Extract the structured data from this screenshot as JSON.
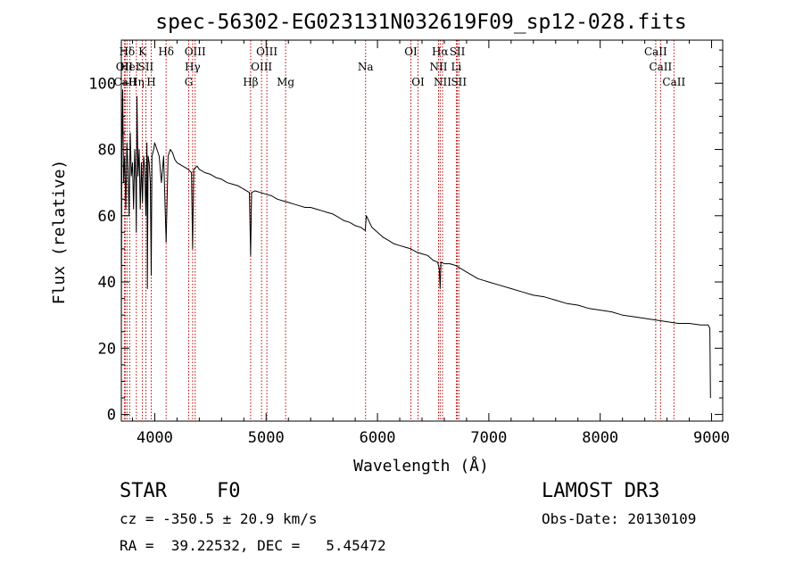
{
  "chart_data": {
    "type": "line",
    "title": "spec-56302-EG023131N032619F09_sp12-028.fits",
    "xlabel": "Wavelength (Å)",
    "ylabel": "Flux (relative)",
    "xlim": [
      3700,
      9100
    ],
    "ylim": [
      -2,
      113
    ],
    "xticks": [
      4000,
      5000,
      6000,
      7000,
      8000,
      9000
    ],
    "xtick_labels": [
      "4000",
      "5000",
      "6000",
      "7000",
      "8000",
      "9000"
    ],
    "yticks": [
      0,
      20,
      40,
      60,
      80,
      100
    ],
    "ytick_labels": [
      "0",
      "20",
      "40",
      "60",
      "80",
      "100"
    ],
    "grid": false,
    "series": [
      {
        "name": "spectrum",
        "color": "#000000",
        "x": [
          3700,
          3705,
          3712,
          3720,
          3730,
          3740,
          3750,
          3760,
          3770,
          3780,
          3790,
          3800,
          3810,
          3820,
          3830,
          3835,
          3840,
          3850,
          3860,
          3870,
          3880,
          3890,
          3900,
          3910,
          3920,
          3930,
          3934,
          3940,
          3950,
          3960,
          3968,
          3975,
          3990,
          4000,
          4020,
          4040,
          4060,
          4080,
          4102,
          4120,
          4140,
          4160,
          4180,
          4200,
          4250,
          4300,
          4330,
          4340,
          4350,
          4380,
          4400,
          4450,
          4500,
          4550,
          4600,
          4650,
          4700,
          4750,
          4800,
          4850,
          4861,
          4870,
          4900,
          4950,
          5000,
          5050,
          5100,
          5150,
          5200,
          5250,
          5300,
          5350,
          5400,
          5450,
          5500,
          5550,
          5600,
          5650,
          5700,
          5750,
          5800,
          5850,
          5890,
          5900,
          5950,
          6000,
          6050,
          6100,
          6150,
          6200,
          6250,
          6300,
          6350,
          6400,
          6450,
          6500,
          6540,
          6555,
          6563,
          6570,
          6600,
          6650,
          6700,
          6750,
          6800,
          6850,
          6900,
          6950,
          7000,
          7100,
          7200,
          7300,
          7400,
          7500,
          7600,
          7700,
          7800,
          7900,
          8000,
          8100,
          8200,
          8300,
          8400,
          8500,
          8600,
          8700,
          8800,
          8900,
          8970,
          8985,
          8990
        ],
        "y": [
          26,
          80,
          98,
          70,
          78,
          62,
          82,
          74,
          60,
          85,
          72,
          76,
          62,
          80,
          70,
          55,
          96,
          72,
          80,
          62,
          76,
          64,
          78,
          74,
          60,
          82,
          38,
          78,
          76,
          70,
          42,
          78,
          80,
          82,
          80,
          78,
          70,
          78,
          52,
          78,
          80,
          79,
          77,
          76,
          75,
          74,
          73,
          50,
          74,
          75,
          74,
          73,
          72.5,
          71.5,
          71,
          70,
          69.5,
          69,
          68,
          67,
          48,
          67,
          67.5,
          67,
          66.5,
          66,
          65,
          64.5,
          64,
          63.5,
          63,
          62.5,
          62.5,
          62,
          61.5,
          61,
          60.5,
          59.5,
          58.5,
          58,
          57,
          56.5,
          55.5,
          60,
          56.5,
          55,
          53.5,
          52.5,
          51.5,
          51,
          50.5,
          50,
          49,
          48.5,
          48,
          46.5,
          46,
          44,
          38,
          46,
          45.5,
          45.5,
          45,
          44,
          43,
          42,
          41,
          40.5,
          40,
          39,
          38,
          37,
          36,
          35.5,
          34.5,
          33.5,
          33,
          32,
          31.5,
          31,
          30,
          29.5,
          29,
          28.5,
          28,
          27.5,
          27.5,
          27,
          27,
          26,
          5
        ]
      }
    ],
    "line_markers": [
      {
        "label": "Hδ",
        "x": 3751,
        "row": 1
      },
      {
        "label": "OII",
        "x": 3727,
        "row": 2
      },
      {
        "label": "CaII",
        "x": 3735,
        "row": 3
      },
      {
        "label": "HeI",
        "x": 3775,
        "row": 2
      },
      {
        "label": "Hη",
        "x": 3835,
        "row": 3
      },
      {
        "label": "K",
        "x": 3889,
        "row": 1
      },
      {
        "label": "SII",
        "x": 3920,
        "row": 2
      },
      {
        "label": "H",
        "x": 3968,
        "row": 3
      },
      {
        "label": "Hδ",
        "x": 4102,
        "row": 1
      },
      {
        "label": "OIII",
        "x": 4363,
        "row": 1
      },
      {
        "label": "Hγ",
        "x": 4340,
        "row": 2
      },
      {
        "label": "G",
        "x": 4305,
        "row": 3
      },
      {
        "label": "Hβ",
        "x": 4861,
        "row": 3
      },
      {
        "label": "OIII",
        "x": 5007,
        "row": 1
      },
      {
        "label": "OIII",
        "x": 4959,
        "row": 2
      },
      {
        "label": "Mg",
        "x": 5175,
        "row": 3
      },
      {
        "label": "Na",
        "x": 5893,
        "row": 2
      },
      {
        "label": "OI",
        "x": 6300,
        "row": 1
      },
      {
        "label": "OI",
        "x": 6364,
        "row": 3
      },
      {
        "label": "Hα",
        "x": 6563,
        "row": 1
      },
      {
        "label": "NII",
        "x": 6548,
        "row": 2
      },
      {
        "label": "NII",
        "x": 6584,
        "row": 3
      },
      {
        "label": "SII",
        "x": 6717,
        "row": 1
      },
      {
        "label": "Li",
        "x": 6708,
        "row": 2
      },
      {
        "label": "SII",
        "x": 6731,
        "row": 3
      },
      {
        "label": "CaII",
        "x": 8498,
        "row": 1
      },
      {
        "label": "CaII",
        "x": 8542,
        "row": 2
      },
      {
        "label": "CaII",
        "x": 8662,
        "row": 3
      }
    ]
  },
  "info": {
    "object_class": "STAR",
    "subclass": "F0",
    "survey": "LAMOST DR3",
    "redshift_line": "cz = -350.5 ± 20.9 km/s",
    "obs_date_line": "Obs-Date: 20130109",
    "coords_line": "RA =  39.22532, DEC =   5.45472"
  },
  "colors": {
    "marker_line": "#c00000",
    "spectrum": "#000000",
    "axes": "#000000"
  }
}
